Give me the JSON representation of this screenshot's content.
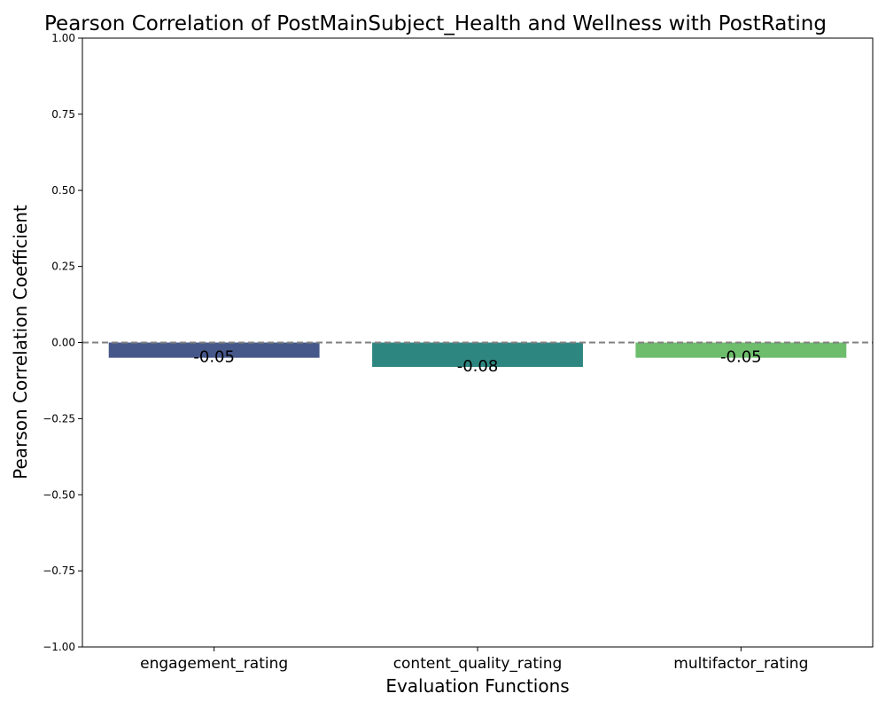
{
  "chart_data": {
    "type": "bar",
    "title": "Pearson Correlation of PostMainSubject_Health and Wellness   with PostRating",
    "xlabel": "Evaluation Functions",
    "ylabel": "Pearson Correlation Coefficient",
    "categories": [
      "engagement_rating",
      "content_quality_rating",
      "multifactor_rating"
    ],
    "values": [
      -0.05,
      -0.08,
      -0.05
    ],
    "value_labels": [
      "-0.05",
      "-0.08",
      "-0.05"
    ],
    "colors": [
      "#46578a",
      "#2e8681",
      "#6dbd6c"
    ],
    "ylim": [
      -1.0,
      1.0
    ],
    "yticks": [
      1.0,
      0.75,
      0.5,
      0.25,
      0.0,
      -0.25,
      -0.5,
      -0.75,
      -1.0
    ],
    "ytick_labels": [
      "1.00",
      "0.75",
      "0.50",
      "0.25",
      "0.00",
      "−0.25",
      "−0.50",
      "−0.75",
      "−1.00"
    ],
    "reference_line": {
      "y": 0,
      "style": "dashed",
      "color": "#808080"
    },
    "grid": false,
    "legend": "none"
  }
}
